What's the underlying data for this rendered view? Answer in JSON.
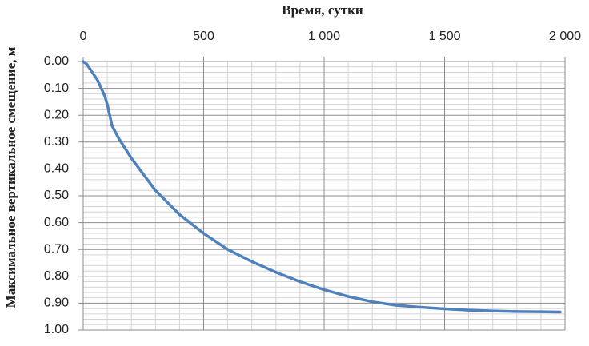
{
  "chart_data": {
    "type": "line",
    "title": "Время, сутки",
    "y_label": "Максимальное вертикальное смещение, м",
    "x": [
      0,
      15,
      30,
      45,
      60,
      75,
      90,
      100,
      110,
      120,
      150,
      200,
      250,
      300,
      400,
      500,
      600,
      700,
      800,
      900,
      1000,
      1100,
      1200,
      1300,
      1400,
      1500,
      1600,
      1700,
      1800,
      1900,
      1980
    ],
    "series": [
      {
        "name": "Смещение",
        "color": "#4f81bd",
        "values": [
          0.0,
          0.01,
          0.03,
          0.05,
          0.07,
          0.1,
          0.13,
          0.16,
          0.2,
          0.24,
          0.29,
          0.36,
          0.42,
          0.48,
          0.57,
          0.64,
          0.7,
          0.745,
          0.785,
          0.82,
          0.85,
          0.875,
          0.895,
          0.908,
          0.915,
          0.921,
          0.926,
          0.929,
          0.931,
          0.932,
          0.933
        ]
      }
    ],
    "xlim": [
      0,
      2000
    ],
    "xticks": [
      0,
      500,
      {
        "value": 1000,
        "label": "1 000"
      },
      {
        "value": 1500,
        "label": "1 500"
      },
      {
        "value": 2000,
        "label": "2 000"
      }
    ],
    "ylim": [
      0,
      1
    ],
    "y_inverted": true,
    "yticks": [
      {
        "value": 0,
        "label": "0.00"
      },
      {
        "value": 0.1,
        "label": "0.10"
      },
      {
        "value": 0.2,
        "label": "0.20"
      },
      {
        "value": 0.3,
        "label": "0.30"
      },
      {
        "value": 0.4,
        "label": "0.40"
      },
      {
        "value": 0.5,
        "label": "0.50"
      },
      {
        "value": 0.6,
        "label": "0.60"
      },
      {
        "value": 0.7,
        "label": "0.70"
      },
      {
        "value": 0.8,
        "label": "0.80"
      },
      {
        "value": 0.9,
        "label": "0.90"
      },
      {
        "value": 1,
        "label": "1.00"
      }
    ],
    "grid": true,
    "minor_grid": {
      "x": 5,
      "y": 5
    }
  }
}
